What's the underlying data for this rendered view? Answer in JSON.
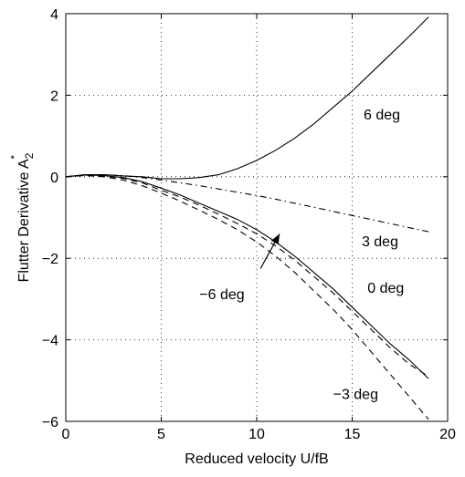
{
  "chart_data": {
    "type": "line",
    "xlabel": "Reduced velocity U/fB",
    "ylabel": "Flutter Derivative A",
    "ylabel_sub": "2",
    "ylabel_sup": "*",
    "xlim": [
      0,
      20
    ],
    "ylim": [
      -6,
      4
    ],
    "xticks": [
      0,
      5,
      10,
      15,
      20
    ],
    "yticks": [
      -6,
      -4,
      -2,
      0,
      2,
      4
    ],
    "grid": true,
    "series": [
      {
        "name": "6 deg",
        "style": "solid",
        "x": [
          0,
          1,
          2,
          3,
          4,
          5,
          6,
          7,
          8,
          9,
          10,
          11,
          12,
          13,
          14,
          15,
          16,
          17,
          18,
          19
        ],
        "y": [
          0,
          0.05,
          0.05,
          0.02,
          0.0,
          -0.05,
          -0.05,
          -0.02,
          0.05,
          0.2,
          0.4,
          0.65,
          0.95,
          1.3,
          1.7,
          2.1,
          2.55,
          3.0,
          3.45,
          3.92
        ]
      },
      {
        "name": "3 deg",
        "style": "dashdot",
        "x": [
          0,
          1,
          2,
          3,
          4,
          5,
          6,
          7,
          8,
          9,
          10,
          11,
          12,
          13,
          14,
          15,
          16,
          17,
          18,
          19
        ],
        "y": [
          0,
          0.05,
          0.05,
          0.03,
          -0.02,
          -0.08,
          -0.15,
          -0.22,
          -0.3,
          -0.38,
          -0.46,
          -0.55,
          -0.65,
          -0.75,
          -0.85,
          -0.95,
          -1.05,
          -1.15,
          -1.25,
          -1.35
        ]
      },
      {
        "name": "0 deg",
        "style": "solid",
        "x": [
          0,
          1,
          2,
          3,
          4,
          5,
          6,
          7,
          8,
          9,
          10,
          11,
          12,
          13,
          14,
          15,
          16,
          17,
          18,
          19
        ],
        "y": [
          0,
          0.04,
          0.03,
          -0.02,
          -0.12,
          -0.28,
          -0.45,
          -0.65,
          -0.85,
          -1.05,
          -1.3,
          -1.6,
          -1.95,
          -2.35,
          -2.75,
          -3.2,
          -3.65,
          -4.1,
          -4.5,
          -4.95
        ]
      },
      {
        "name": "-6 deg",
        "style": "dashed",
        "x": [
          0,
          1,
          2,
          3,
          4,
          5,
          6,
          7,
          8,
          9,
          10,
          11,
          12,
          13,
          14,
          15,
          16,
          17,
          18,
          19
        ],
        "y": [
          0,
          0.04,
          0.02,
          -0.04,
          -0.15,
          -0.33,
          -0.5,
          -0.7,
          -0.92,
          -1.15,
          -1.4,
          -1.7,
          -2.05,
          -2.45,
          -2.85,
          -3.3,
          -3.75,
          -4.2,
          -4.6,
          -4.9
        ]
      },
      {
        "name": "-3 deg",
        "style": "dashed",
        "x": [
          0,
          1,
          2,
          3,
          4,
          5,
          6,
          7,
          8,
          9,
          10,
          11,
          12,
          13,
          14,
          15,
          16,
          17,
          18,
          19
        ],
        "y": [
          0,
          0.03,
          0.0,
          -0.08,
          -0.22,
          -0.4,
          -0.6,
          -0.82,
          -1.05,
          -1.3,
          -1.6,
          -1.95,
          -2.35,
          -2.8,
          -3.25,
          -3.75,
          -4.3,
          -4.85,
          -5.4,
          -5.95
        ]
      }
    ],
    "annotations": [
      {
        "text": "6 deg",
        "x": 15.6,
        "y": 1.4
      },
      {
        "text": "3 deg",
        "x": 15.5,
        "y": -1.7
      },
      {
        "text": "0 deg",
        "x": 15.8,
        "y": -2.85
      },
      {
        "text": "−6 deg",
        "x": 7.0,
        "y": -3.0
      },
      {
        "text": "−3 deg",
        "x": 14.0,
        "y": -5.45
      }
    ],
    "arrow": {
      "from": [
        10.2,
        -2.25
      ],
      "to": [
        11.2,
        -1.4
      ]
    }
  }
}
